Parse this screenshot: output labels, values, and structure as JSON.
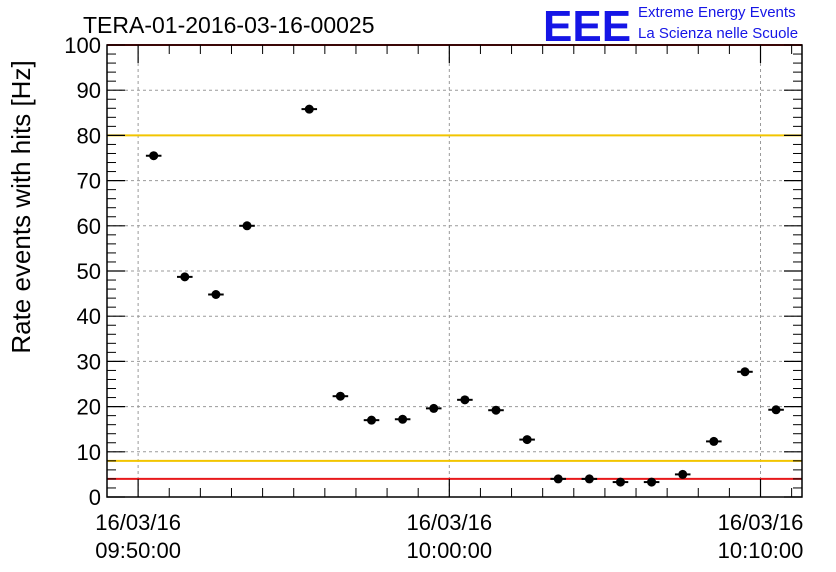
{
  "logo": {
    "mark": "EEE",
    "line1": "Extreme Energy Events",
    "line2": "La Scienza nelle Scuole",
    "color": "#1515e6"
  },
  "chart_data": {
    "type": "scatter",
    "title": "TERA-01-2016-03-16-00025",
    "xlabel": "",
    "ylabel": "Rate events with hits [Hz]",
    "x_unit": "time (16/03/16)",
    "xlim": [
      "09:49:00",
      "10:11:20"
    ],
    "ylim": [
      0,
      100
    ],
    "yticks": [
      0,
      10,
      20,
      30,
      40,
      50,
      60,
      70,
      80,
      90,
      100
    ],
    "xticks": [
      {
        "time": "09:50:00",
        "date": "16/03/16",
        "clock": "09:50:00"
      },
      {
        "time": "10:00:00",
        "date": "16/03/16",
        "clock": "10:00:00"
      },
      {
        "time": "10:10:00",
        "date": "16/03/16",
        "clock": "10:10:00"
      }
    ],
    "grid": true,
    "x_error_bar_width_s": 30,
    "series": [
      {
        "color": "#000000",
        "points": [
          {
            "x": "09:50:30",
            "y": 75.5
          },
          {
            "x": "09:51:30",
            "y": 48.7
          },
          {
            "x": "09:52:30",
            "y": 44.8
          },
          {
            "x": "09:53:30",
            "y": 60.0
          },
          {
            "x": "09:55:30",
            "y": 85.8
          },
          {
            "x": "09:56:30",
            "y": 22.3
          },
          {
            "x": "09:57:30",
            "y": 17.0
          },
          {
            "x": "09:58:30",
            "y": 17.2
          },
          {
            "x": "09:59:30",
            "y": 19.6
          },
          {
            "x": "10:00:30",
            "y": 21.5
          },
          {
            "x": "10:01:30",
            "y": 19.2
          },
          {
            "x": "10:02:30",
            "y": 12.7
          },
          {
            "x": "10:03:30",
            "y": 4.0
          },
          {
            "x": "10:04:30",
            "y": 4.0
          },
          {
            "x": "10:05:30",
            "y": 3.3
          },
          {
            "x": "10:06:30",
            "y": 3.3
          },
          {
            "x": "10:07:30",
            "y": 5.0
          },
          {
            "x": "10:08:30",
            "y": 12.3
          },
          {
            "x": "10:09:30",
            "y": 27.7
          },
          {
            "x": "10:10:30",
            "y": 19.3
          }
        ]
      }
    ],
    "reference_lines": [
      {
        "y": 100,
        "color": "#e8191b"
      },
      {
        "y": 80,
        "color": "#f2c500"
      },
      {
        "y": 8,
        "color": "#f2c500"
      },
      {
        "y": 4,
        "color": "#e8191b"
      }
    ]
  }
}
